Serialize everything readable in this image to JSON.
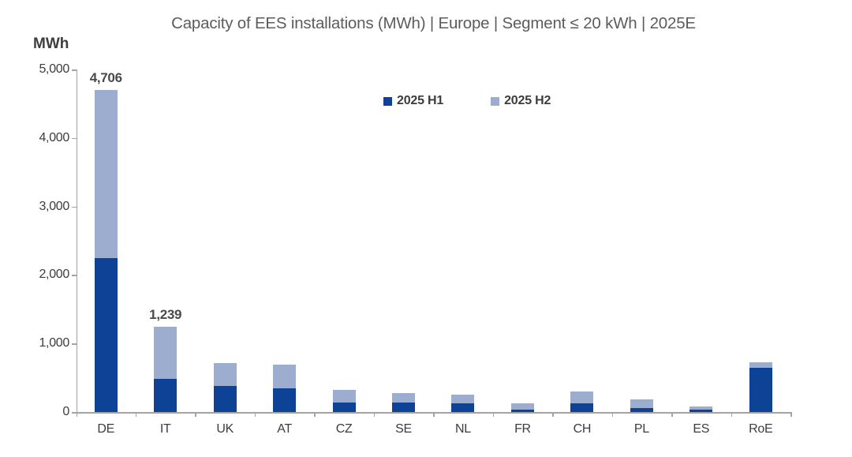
{
  "title": "Capacity of EES installations (MWh) | Europe | Segment ≤ 20 kWh | 2025E",
  "y_axis_unit": "MWh",
  "legend": {
    "items": [
      {
        "label": "2025 H1",
        "color": "#0d4296"
      },
      {
        "label": "2025 H2",
        "color": "#9cadd0"
      }
    ]
  },
  "colors": {
    "h1_dark_blue": "#0d4296",
    "h2_light_blue": "#9cadd0",
    "axis_gray": "#a3a3a3",
    "text_gray": "#3d3d3d",
    "title_gray": "#5c5c5c"
  },
  "chart_data": {
    "type": "bar",
    "stacked": true,
    "title": "Capacity of EES installations (MWh) | Europe | Segment ≤ 20 kWh | 2025E",
    "xlabel": "",
    "ylabel": "MWh",
    "ylim": [
      0,
      5000
    ],
    "y_tick_step": 1000,
    "y_ticks": [
      "5,000",
      "4,000",
      "3,000",
      "2,000",
      "1,000",
      "0"
    ],
    "grid": false,
    "legend_position": "top-center",
    "categories": [
      "DE",
      "IT",
      "UK",
      "AT",
      "CZ",
      "SE",
      "NL",
      "FR",
      "CH",
      "PL",
      "ES",
      "RoE"
    ],
    "series": [
      {
        "name": "2025 H1",
        "color": "#0d4296",
        "values": [
          2250,
          480,
          375,
          350,
          135,
          140,
          125,
          40,
          130,
          60,
          40,
          645
        ]
      },
      {
        "name": "2025 H2",
        "color": "#9cadd0",
        "values": [
          2456,
          759,
          345,
          340,
          185,
          140,
          125,
          85,
          175,
          130,
          45,
          85
        ]
      }
    ],
    "totals": [
      4706,
      1239,
      720,
      690,
      320,
      280,
      250,
      125,
      305,
      190,
      85,
      730
    ],
    "annotations": [
      {
        "category": "DE",
        "text": "4,706"
      },
      {
        "category": "IT",
        "text": "1,239"
      }
    ]
  }
}
